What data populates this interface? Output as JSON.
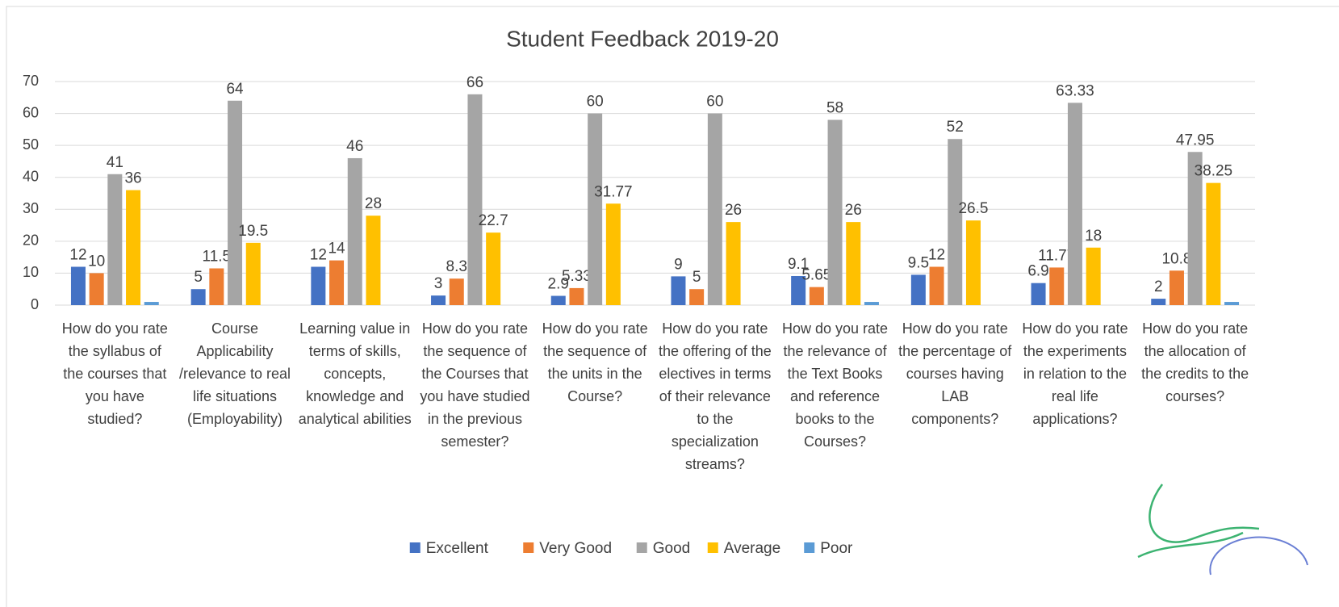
{
  "chart_data": {
    "type": "bar",
    "title": "Student Feedback 2019-20",
    "categories": [
      "How do you rate the syllabus of the courses that you have studied?",
      "Course Applicability /relevance to real life situations (Employability)",
      "Learning value in terms of skills, concepts, knowledge and analytical abilities",
      "How do you rate the sequence of the Courses that you have studied in the previous semester?",
      "How do you rate the sequence of the units in the Course?",
      "How do you rate the offering of the electives in terms of their relevance to the specialization streams?",
      "How do you rate the relevance of the Text Books and reference books to the Courses?",
      "How do you rate the percentage of courses having LAB components?",
      "How do you rate the experiments in relation to the real life applications?",
      "How do you rate the allocation of the credits to the courses?"
    ],
    "series": [
      {
        "name": "Excellent",
        "color": "#4472c4",
        "data_labels": true,
        "values": [
          12,
          5,
          12,
          3,
          2.9,
          9,
          9.1,
          9.5,
          6.9,
          2
        ]
      },
      {
        "name": "Very Good",
        "color": "#ed7d31",
        "data_labels": true,
        "values": [
          10,
          11.5,
          14,
          8.3,
          5.33,
          5,
          5.65,
          12,
          11.77,
          10.8
        ]
      },
      {
        "name": "Good",
        "color": "#a5a5a5",
        "data_labels": true,
        "values": [
          41,
          64,
          46,
          66,
          60,
          60,
          58,
          52,
          63.33,
          47.95
        ]
      },
      {
        "name": "Average",
        "color": "#ffc000",
        "data_labels": true,
        "values": [
          36,
          19.5,
          28,
          22.7,
          31.77,
          26,
          26,
          26.5,
          18,
          38.25
        ]
      },
      {
        "name": "Poor",
        "color": "#5b9bd5",
        "data_labels": false,
        "values": [
          1,
          0,
          0,
          0,
          0,
          0,
          1,
          0,
          0,
          1
        ]
      }
    ],
    "ylim": [
      0,
      70
    ],
    "yticks": [
      0,
      10,
      20,
      30,
      40,
      50,
      60,
      70
    ],
    "grid": true,
    "legend": "bottom"
  }
}
